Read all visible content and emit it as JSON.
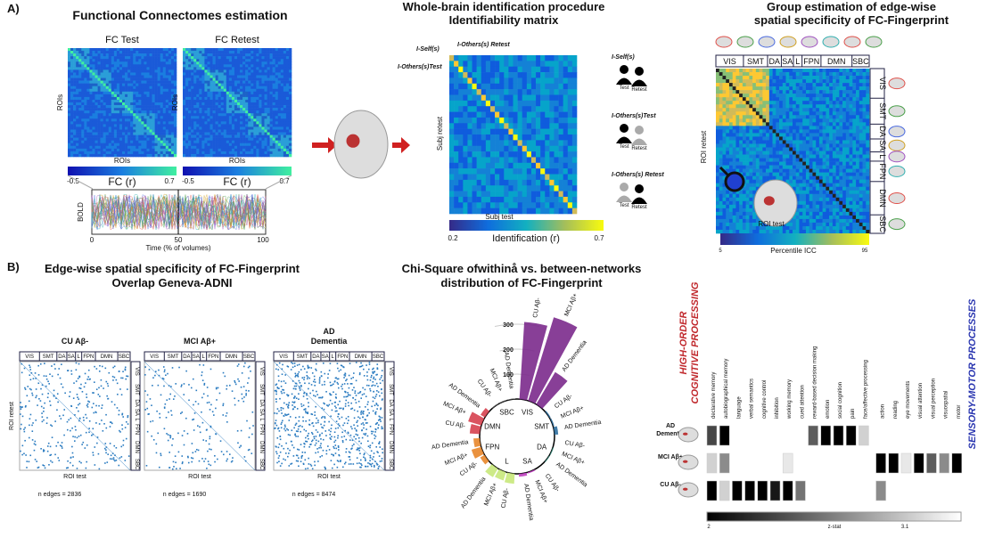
{
  "panel_a": {
    "label": "A)",
    "connectomes": {
      "title": "Functional Connectomes estimation",
      "test_label": "FC Test",
      "retest_label": "FC Retest",
      "axis_label": "ROIs",
      "colorbar_label": "FC (r)",
      "colorbar_min": "-0.5",
      "colorbar_max": "0.7",
      "bold_label": "BOLD",
      "time_label": "Time (% of volumes)",
      "time_ticks": [
        "0",
        "50",
        "100"
      ]
    },
    "identifiability": {
      "title_lines": [
        "Whole-brain identification procedure",
        "Identifiability matrix"
      ],
      "self_label": "I-Self(s)",
      "others_retest_label": "I-Others(s) Retest",
      "others_test_label": "I-Others(s)Test",
      "y_label": "Subj retest",
      "x_label": "Subj test",
      "colorbar_label": "Identification (r)",
      "colorbar_min": "0.2",
      "colorbar_max": "0.7",
      "legend": [
        "I-Self(s)",
        "I-Others(s)Test",
        "I-Others(s) Retest"
      ],
      "test": "Test",
      "retest": "Retest"
    },
    "specificity": {
      "title_lines": [
        "Group estimation of edge-wise",
        "spatial specificity of FC-Fingerprint"
      ],
      "networks": [
        "VIS",
        "SMT",
        "DA",
        "SA",
        "L",
        "FPN",
        "DMN",
        "SBC"
      ],
      "y_label": "ROI retest",
      "x_label": "ROI test",
      "colorbar_label": "Percentile ICC",
      "colorbar_min": "5",
      "colorbar_max": "95"
    }
  },
  "panel_b": {
    "label": "B)",
    "overlap": {
      "title_lines": [
        "Edge-wise spatial specificity  of FC-Fingerprint",
        "Overlap Geneva-ADNI"
      ],
      "groups": [
        {
          "title_lines": [
            "CU Aβ-"
          ],
          "edges": "n edges = 2836"
        },
        {
          "title_lines": [
            "MCI Aβ+"
          ],
          "edges": "n edges = 1690"
        },
        {
          "title_lines": [
            "AD",
            "Dementia"
          ],
          "edges": "n edges = 8474"
        }
      ],
      "y_label": "ROI retest",
      "x_label": "ROI test"
    },
    "radial": {
      "title_lines": [
        "Chi-Square ofwithinå vs. between-networks",
        "distribution of FC-Fingerprint"
      ],
      "ticks": [
        100,
        200,
        300
      ],
      "groups": [
        "CU Aβ-",
        "MCI Aβ+",
        "AD Dementia"
      ],
      "networks": [
        {
          "name": "VIS",
          "color": "#7b2a8c",
          "values": [
            310,
            350,
            150
          ]
        },
        {
          "name": "SMT",
          "color": "#2f6f9f",
          "values": [
            5,
            5,
            15
          ]
        },
        {
          "name": "DA",
          "color": "#3a9a8a",
          "values": [
            0,
            3,
            3
          ]
        },
        {
          "name": "SA",
          "color": "#c03fc0",
          "values": [
            0,
            5,
            12
          ]
        },
        {
          "name": "L",
          "color": "#c8e87a",
          "values": [
            40,
            35,
            40
          ]
        },
        {
          "name": "FPN",
          "color": "#e8862a",
          "values": [
            20,
            40,
            25
          ]
        },
        {
          "name": "DMN",
          "color": "#d6414f",
          "values": [
            40,
            55,
            20
          ]
        },
        {
          "name": "SBC",
          "color": "#888888",
          "values": [
            2,
            2,
            2
          ]
        }
      ]
    },
    "decoding": {
      "left_label": [
        "HIGH-ORDER",
        "COGNITIVE PROCESSING"
      ],
      "right_label": "SENSORY-MOTOR PROCESSES",
      "terms": [
        "declarative memory",
        "autobiographical memory",
        "language",
        "verbal semantics",
        "cognitive control",
        "inhibition",
        "working memory",
        "cued attention",
        "reward-based decision making",
        "emotion",
        "social cognition",
        "pain",
        "face/affective processing",
        "action",
        "reading",
        "eye movements",
        "visual attention",
        "visual perception",
        "visuospatial",
        "motor"
      ],
      "rows": [
        {
          "label": [
            "AD",
            "Dementia"
          ],
          "values": [
            2.3,
            2.0,
            null,
            null,
            null,
            null,
            null,
            null,
            2.4,
            2.0,
            2.0,
            2.0,
            2.9,
            null,
            null,
            null,
            null,
            null,
            null,
            null
          ]
        },
        {
          "label": [
            "MCI Aβ+"
          ],
          "values": [
            2.9,
            2.6,
            null,
            null,
            null,
            null,
            3.0,
            null,
            null,
            null,
            null,
            null,
            null,
            2.0,
            2.0,
            3.0,
            2.0,
            2.4,
            2.6,
            2.0
          ]
        },
        {
          "label": [
            "CU Aβ-"
          ],
          "values": [
            2.0,
            2.9,
            2.0,
            2.0,
            2.0,
            2.1,
            2.0,
            2.5,
            null,
            null,
            null,
            null,
            null,
            2.6,
            null,
            null,
            null,
            null,
            null,
            null
          ]
        }
      ],
      "zlim": [
        2,
        3.1
      ],
      "colorbar_min": "2",
      "colorbar_label": "z-stat",
      "colorbar_max": "3.1"
    }
  }
}
